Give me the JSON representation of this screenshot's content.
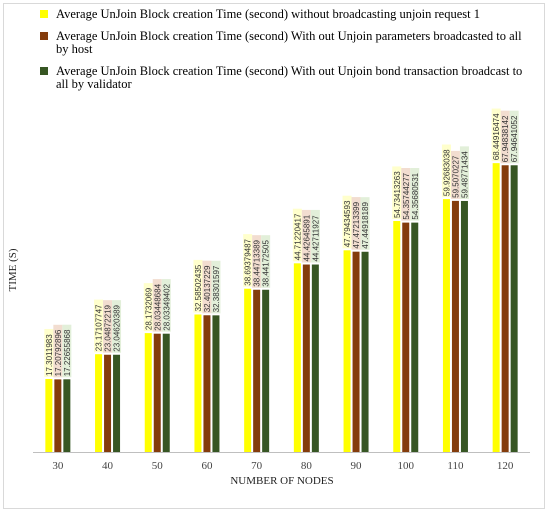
{
  "colors": {
    "series1": "#ffff00",
    "series2": "#843c0c",
    "series3": "#375623",
    "label_bg1": "#ffffcc",
    "label_bg2": "#f2ddd0",
    "label_bg3": "#e2efd9"
  },
  "chart_data": {
    "type": "bar",
    "title": "",
    "xlabel": "NUMBER OF NODES",
    "ylabel": "TIME (S)",
    "categories": [
      "30",
      "40",
      "50",
      "60",
      "70",
      "80",
      "90",
      "100",
      "110",
      "120"
    ],
    "series": [
      {
        "name": "Average UnJoin Block creation Time (second) without broadcasting unjoin request 1",
        "values": [
          17.3011983,
          23.17107747,
          28.1732069,
          32.58502435,
          38.69379487,
          44.71220417,
          47.79434593,
          54.73413263,
          59.92683038,
          68.44916474
        ],
        "labels": [
          "17.3011983",
          "23.17107747",
          "28.1732069",
          "32.58502435",
          "38.69379487",
          "44.71220417",
          "47.79434593",
          "54.73413263",
          "59.92683038",
          "68.44916474"
        ]
      },
      {
        "name": "Average UnJoin Block creation Time (second) With out Unjoin parameters broadcasted to all by host",
        "values": [
          17.20792896,
          23.04872219,
          28.03448684,
          32.40137229,
          38.44713389,
          44.42645891,
          47.47213399,
          54.35744277,
          59.5070227,
          67.94838142
        ],
        "labels": [
          "17.20792896",
          "23.04872219",
          "28.03448684",
          "32.40137229",
          "38.44713389",
          "44.42645891",
          "47.47213399",
          "54.35744277",
          "59.5070227",
          "67.94838142"
        ]
      },
      {
        "name": "Average UnJoin Block creation Time (second) With out Unjoin bond transaction broadcast to all by validator",
        "values": [
          17.22655868,
          23.04620389,
          28.03349402,
          32.38301597,
          38.44172505,
          44.42711927,
          47.44918189,
          54.35680531,
          59.48771434,
          67.94641052
        ],
        "labels": [
          "17.22655868",
          "23.04620389",
          "28.03349402",
          "32.38301597",
          "38.44172505",
          "44.42711927",
          "47.44918189",
          "54.35680531",
          "59.48771434",
          "67.94641052"
        ]
      }
    ],
    "ylim": [
      0,
      85
    ],
    "grid": false,
    "legend_position": "top"
  }
}
